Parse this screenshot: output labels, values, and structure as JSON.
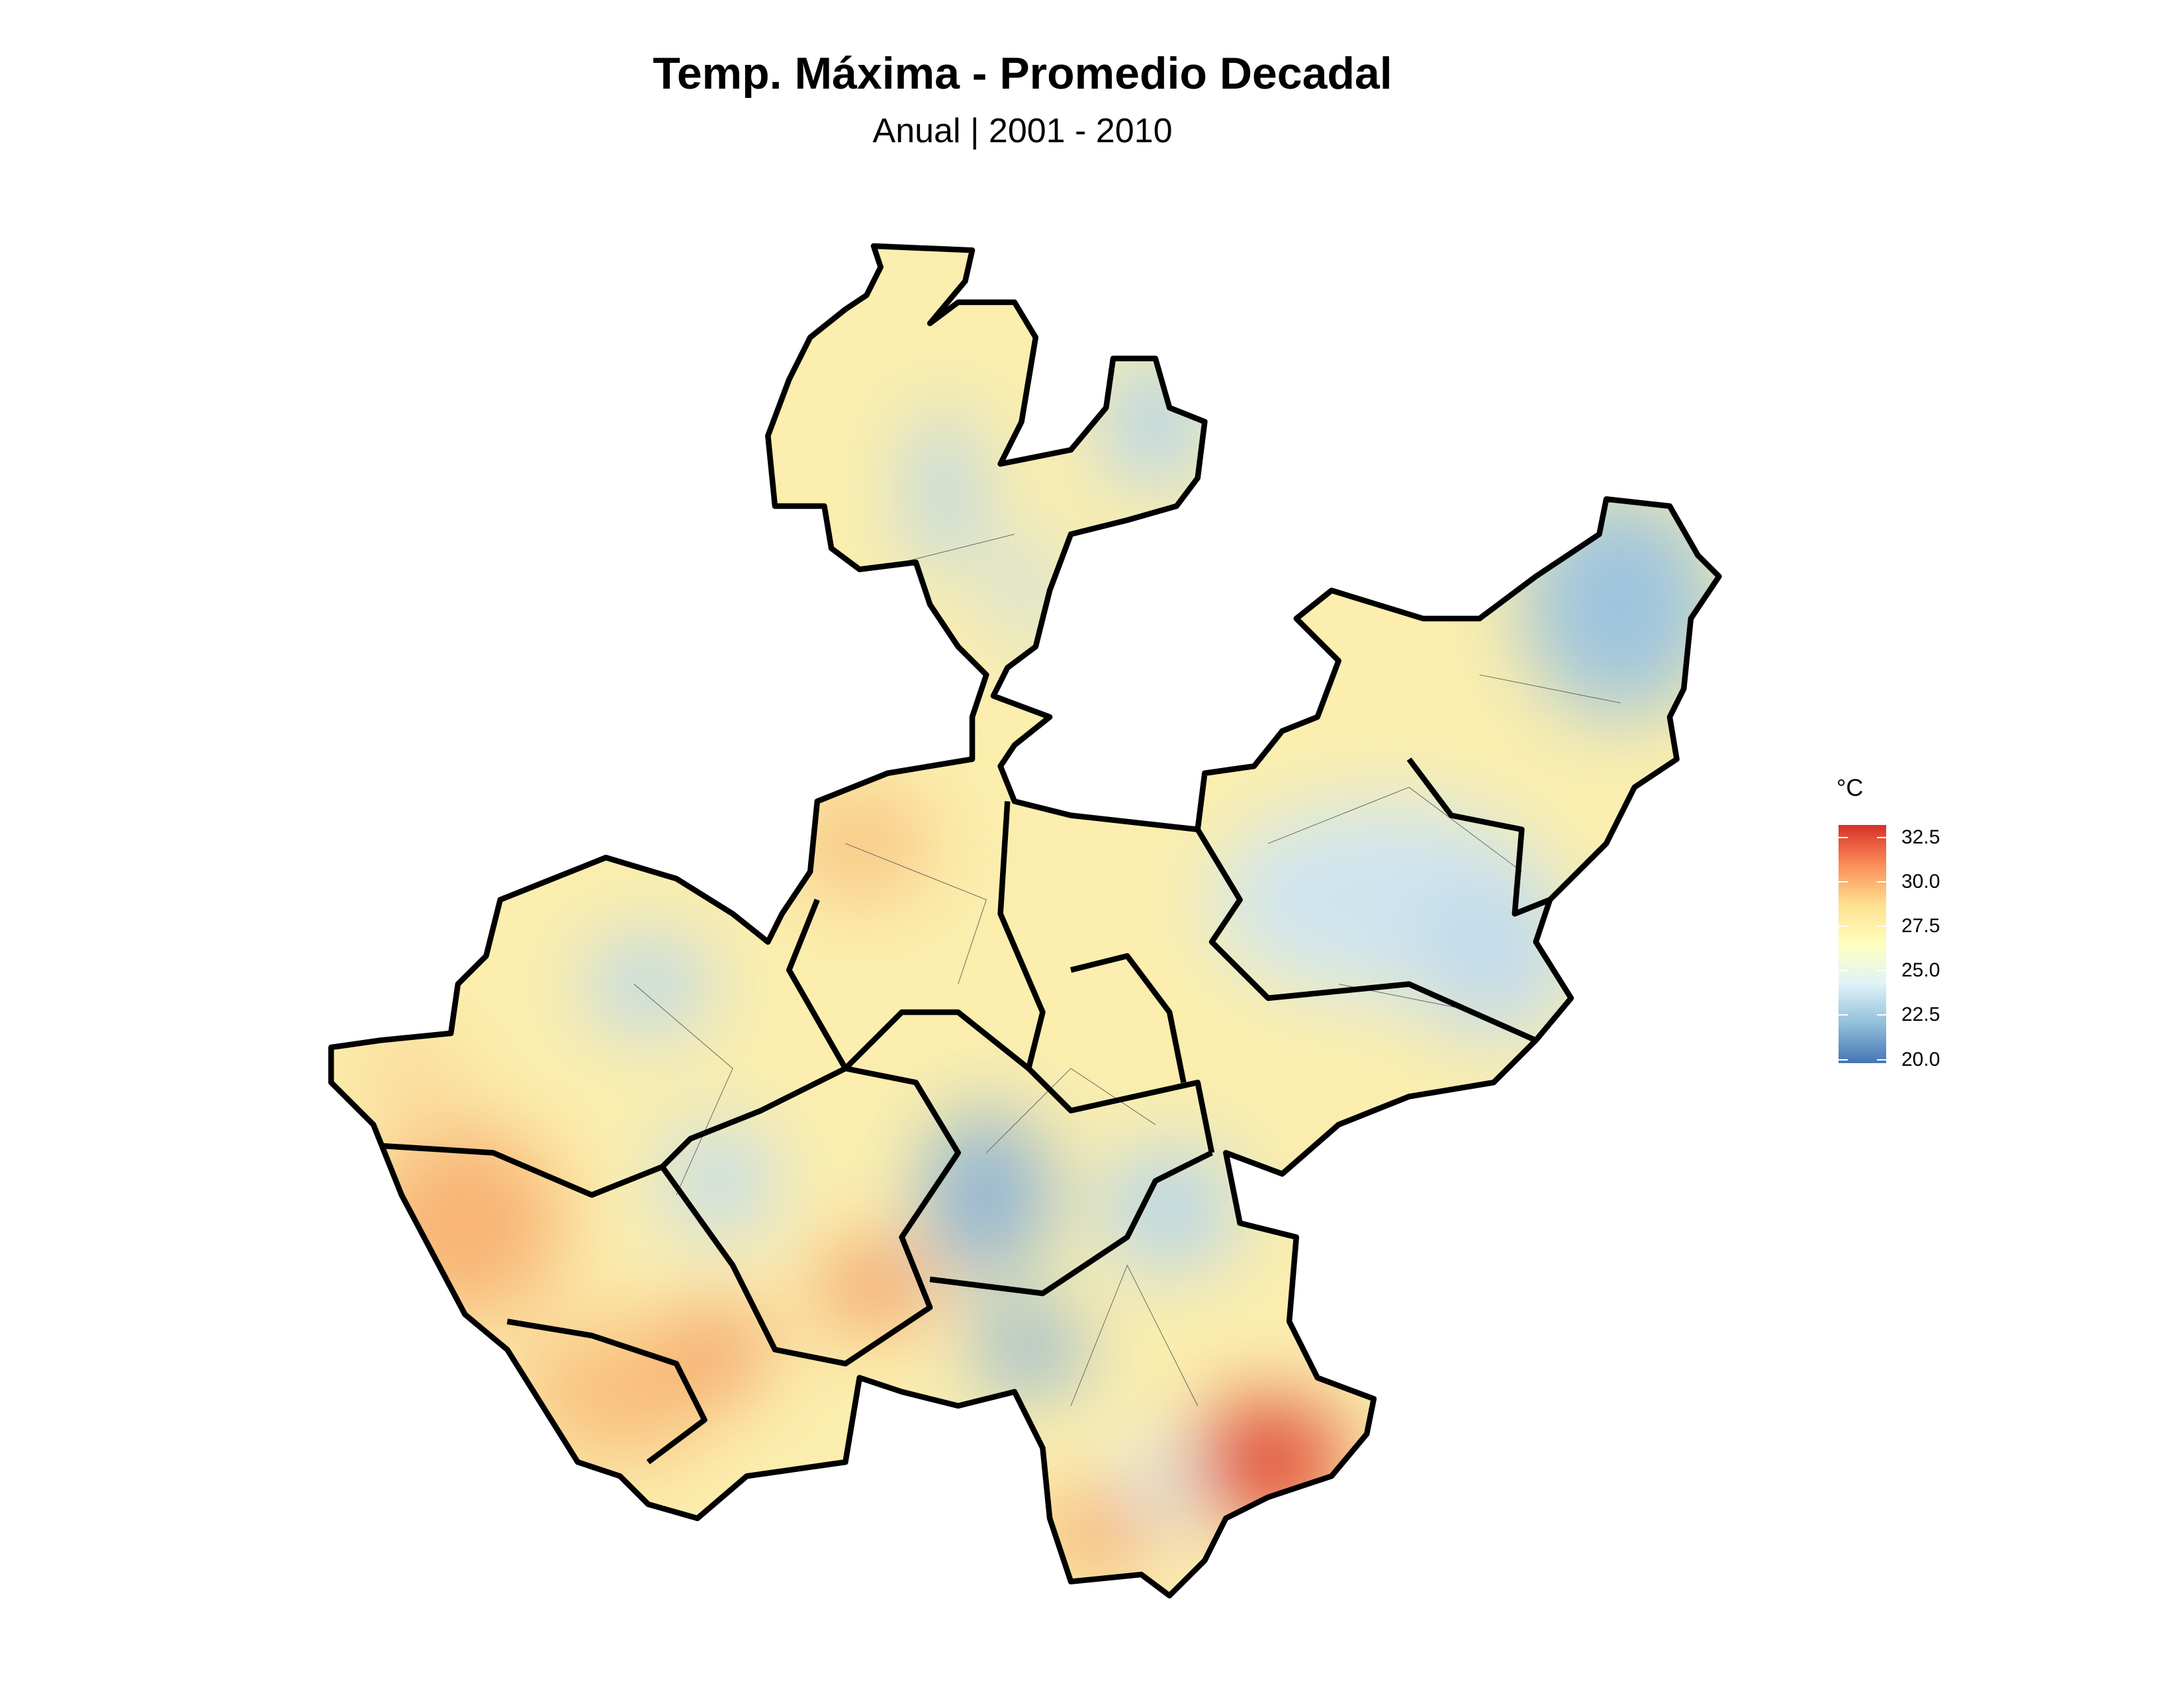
{
  "title": "Temp. Máxima - Promedio Decadal",
  "subtitle": "Anual | 2001 - 2010",
  "legend": {
    "title": "°C",
    "ticks": [
      "32.5",
      "30.0",
      "27.5",
      "25.0",
      "22.5",
      "20.0"
    ],
    "tick_values": [
      32.5,
      30.0,
      27.5,
      25.0,
      22.5,
      20.0
    ],
    "range": [
      19.8,
      33.2
    ],
    "colors": [
      "#4575b4",
      "#91bfdb",
      "#e0f3f8",
      "#ffffbf",
      "#fee090",
      "#fc8d59",
      "#d73027"
    ]
  },
  "map": {
    "type": "choropleth-raster",
    "variable": "Temp. Máxima",
    "colorscale": "RdYlBu (reversed)"
  }
}
